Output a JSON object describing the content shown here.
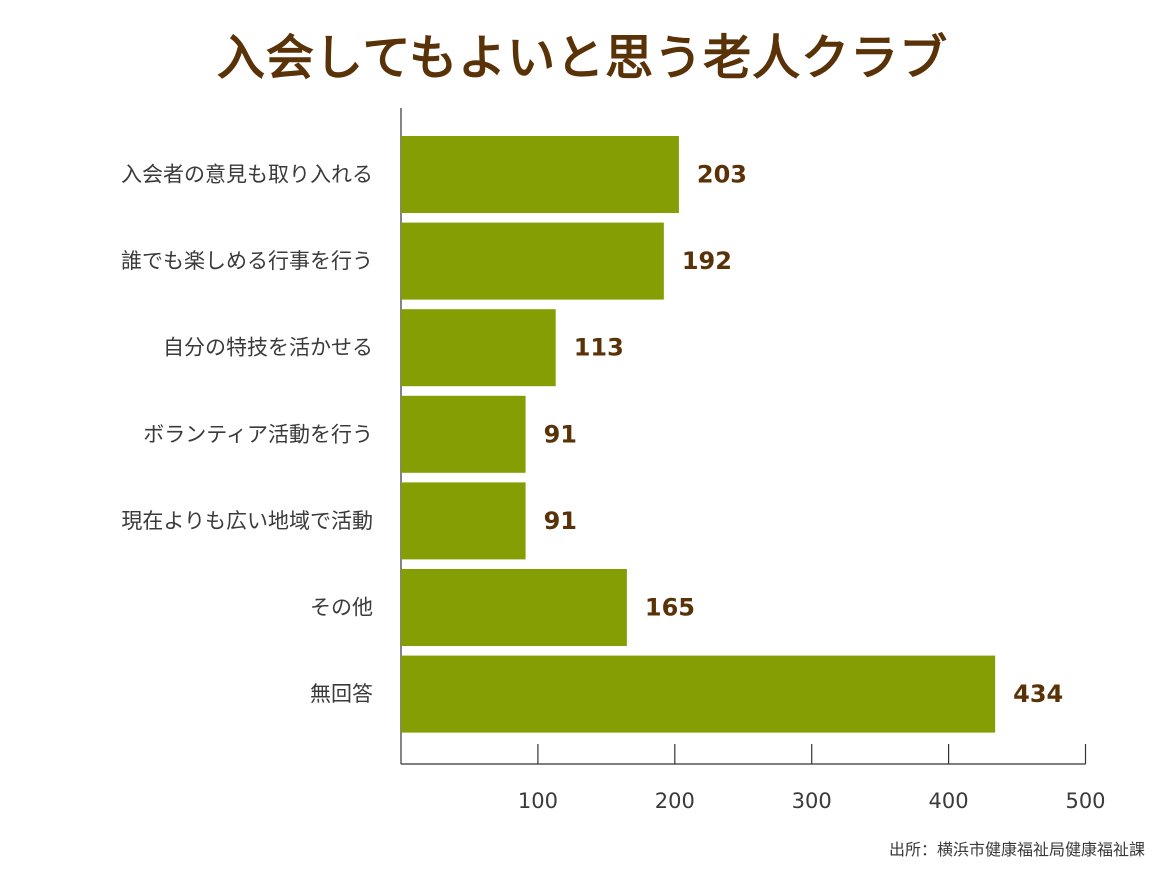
{
  "chart_data": {
    "type": "bar",
    "orientation": "horizontal",
    "title": "入会してもよいと思う老人クラブ",
    "categories": [
      "入会者の意見も取り入れる",
      "誰でも楽しめる行事を行う",
      "自分の特技を活かせる",
      "ボランティア活動を行う",
      "現在よりも広い地域で活動",
      "その他",
      "無回答"
    ],
    "values": [
      203,
      192,
      113,
      91,
      91,
      165,
      434
    ],
    "xlim": [
      0,
      500
    ],
    "xticks": [
      100,
      200,
      300,
      400,
      500
    ],
    "xlabel": "",
    "ylabel": "",
    "grid": false,
    "bar_color": "#849e04",
    "label_color": "#5a3208"
  },
  "source": "出所：横浜市健康福祉局健康福祉課"
}
